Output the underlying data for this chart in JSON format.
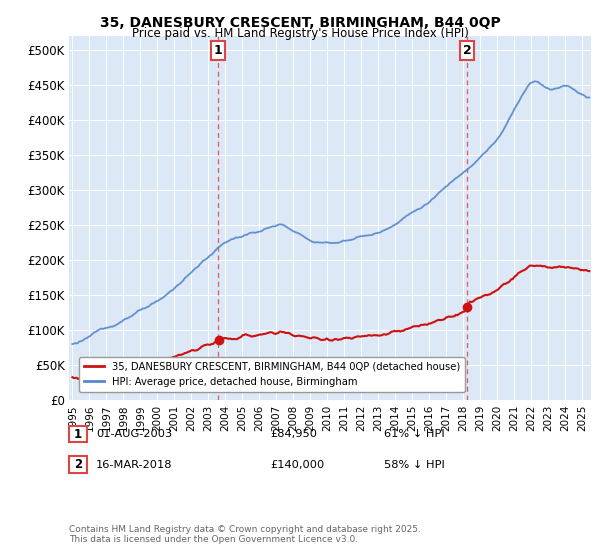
{
  "title_line1": "35, DANESBURY CRESCENT, BIRMINGHAM, B44 0QP",
  "title_line2": "Price paid vs. HM Land Registry's House Price Index (HPI)",
  "ylabel_ticks": [
    "£0",
    "£50K",
    "£100K",
    "£150K",
    "£200K",
    "£250K",
    "£300K",
    "£350K",
    "£400K",
    "£450K",
    "£500K"
  ],
  "ytick_vals": [
    0,
    50000,
    100000,
    150000,
    200000,
    250000,
    300000,
    350000,
    400000,
    450000,
    500000
  ],
  "ylim": [
    0,
    520000
  ],
  "xlim_start": 1994.8,
  "xlim_end": 2025.5,
  "background_color": "#dce8f5",
  "plot_bg_color": "#dce8f5",
  "hpi_color": "#5588cc",
  "price_color": "#cc1111",
  "vline_color": "#dd4444",
  "marker1_x": 2003.58,
  "marker1_y": 84950,
  "marker2_x": 2018.21,
  "marker2_y": 140000,
  "legend_label1": "35, DANESBURY CRESCENT, BIRMINGHAM, B44 0QP (detached house)",
  "legend_label2": "HPI: Average price, detached house, Birmingham",
  "annotation1_date": "01-AUG-2003",
  "annotation1_price": "£84,950",
  "annotation1_hpi": "61% ↓ HPI",
  "annotation2_date": "16-MAR-2018",
  "annotation2_price": "£140,000",
  "annotation2_hpi": "58% ↓ HPI",
  "footer": "Contains HM Land Registry data © Crown copyright and database right 2025.\nThis data is licensed under the Open Government Licence v3.0."
}
